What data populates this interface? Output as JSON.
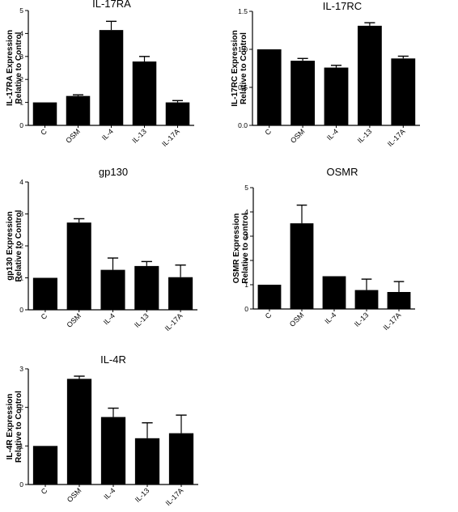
{
  "chart_data": [
    {
      "type": "bar",
      "title": "IL-17RA",
      "ylabel_lines": [
        "IL-17RA Expression",
        "Relative to Control"
      ],
      "categories": [
        "C",
        "OSM",
        "IL-4",
        "IL-13",
        "IL-17A"
      ],
      "values": [
        1.0,
        1.28,
        4.15,
        2.78,
        1.0
      ],
      "errors": [
        0,
        0.05,
        0.38,
        0.22,
        0.08
      ],
      "ylim": [
        0,
        5
      ],
      "yticks": [
        "0",
        "1",
        "2",
        "3",
        "4",
        "5"
      ],
      "ytick_values": [
        0,
        1,
        2,
        3,
        4,
        5
      ],
      "bar_color": "#000000"
    },
    {
      "type": "bar",
      "title": "IL-17RC",
      "ylabel_lines": [
        "IL-17RC Expression",
        "Relative to Control"
      ],
      "categories": [
        "C",
        "OSM",
        "IL-4",
        "IL-13",
        "IL-17A"
      ],
      "values": [
        1.0,
        0.85,
        0.76,
        1.31,
        0.88
      ],
      "errors": [
        0,
        0.03,
        0.03,
        0.04,
        0.03
      ],
      "ylim": [
        0,
        1.5
      ],
      "yticks": [
        "0.0",
        "0.5",
        "1.0",
        "1.5"
      ],
      "ytick_values": [
        0,
        0.5,
        1.0,
        1.5
      ],
      "bar_color": "#000000"
    },
    {
      "type": "bar",
      "title": "gp130",
      "ylabel_lines": [
        "gp130 Expression",
        "Relative to Control"
      ],
      "categories": [
        "C",
        "OSM",
        "IL-4",
        "IL-13",
        "IL-17A"
      ],
      "values": [
        1.0,
        2.73,
        1.25,
        1.37,
        1.02
      ],
      "errors": [
        0,
        0.12,
        0.37,
        0.14,
        0.38
      ],
      "ylim": [
        0,
        4
      ],
      "yticks": [
        "0",
        "1",
        "2",
        "3",
        "4"
      ],
      "ytick_values": [
        0,
        1,
        2,
        3,
        4
      ],
      "bar_color": "#000000"
    },
    {
      "type": "bar",
      "title": "OSMR",
      "ylabel_lines": [
        "OSMR Expression",
        "Relative to control"
      ],
      "categories": [
        "C",
        "OSM",
        "IL-4",
        "IL-13",
        "IL-17A"
      ],
      "values": [
        1.0,
        3.53,
        1.35,
        0.78,
        0.7
      ],
      "errors": [
        0,
        0.75,
        0,
        0.45,
        0.43
      ],
      "ylim": [
        0,
        5
      ],
      "yticks": [
        "0",
        "1",
        "2",
        "3",
        "4",
        "5"
      ],
      "ytick_values": [
        0,
        1,
        2,
        3,
        4,
        5
      ],
      "bar_color": "#000000"
    },
    {
      "type": "bar",
      "title": "IL-4R",
      "ylabel_lines": [
        "IL-4R Expression",
        "Relative to Control"
      ],
      "categories": [
        "C",
        "OSM",
        "IL-4",
        "IL-13",
        "IL-17A"
      ],
      "values": [
        1.0,
        2.74,
        1.75,
        1.2,
        1.33
      ],
      "errors": [
        0,
        0.07,
        0.23,
        0.4,
        0.47
      ],
      "ylim": [
        0,
        3
      ],
      "yticks": [
        "0",
        "1",
        "2",
        "3"
      ],
      "ytick_values": [
        0,
        1,
        2,
        3
      ],
      "bar_color": "#000000"
    }
  ]
}
